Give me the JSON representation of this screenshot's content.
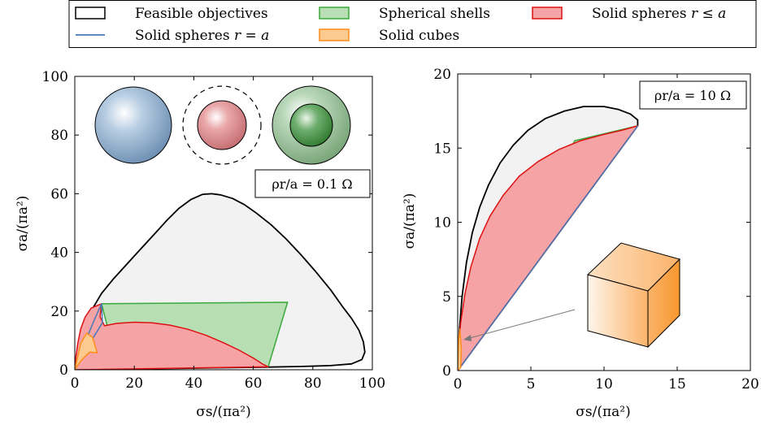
{
  "chart_data": [
    {
      "type": "area",
      "annotation": "ρr/a = 0.1 Ω",
      "xlabel": "σs/(πa²)",
      "ylabel": "σa/(πa²)",
      "xlim": [
        0,
        100
      ],
      "ylim": [
        0,
        100
      ],
      "xticks": [
        "0",
        "20",
        "40",
        "60",
        "80",
        "100"
      ],
      "yticks": [
        "0",
        "20",
        "40",
        "60",
        "80",
        "100"
      ],
      "series": [
        {
          "name": "Feasible objectives",
          "color": "#000000",
          "fill": "#f2f2f2",
          "points": [
            [
              0,
              0
            ],
            [
              0.6,
              3
            ],
            [
              1.5,
              8
            ],
            [
              3,
              14
            ],
            [
              5.5,
              20
            ],
            [
              9,
              26
            ],
            [
              13,
              31
            ],
            [
              17.5,
              36
            ],
            [
              22,
              41
            ],
            [
              27,
              46.5
            ],
            [
              31,
              51
            ],
            [
              35,
              55
            ],
            [
              39,
              58
            ],
            [
              43,
              59.8
            ],
            [
              46,
              60
            ],
            [
              49,
              59.6
            ],
            [
              53,
              58.4
            ],
            [
              57,
              56.3
            ],
            [
              61,
              53.4
            ],
            [
              66,
              49.4
            ],
            [
              71,
              44.6
            ],
            [
              76,
              39.2
            ],
            [
              81,
              33.4
            ],
            [
              86,
              27.2
            ],
            [
              90,
              21.5
            ],
            [
              93,
              17.5
            ],
            [
              95.5,
              13.5
            ],
            [
              97,
              9.5
            ],
            [
              97.5,
              6
            ],
            [
              96.5,
              3.5
            ],
            [
              93,
              2
            ],
            [
              86,
              1.4
            ],
            [
              76,
              1.1
            ],
            [
              64,
              0.9
            ],
            [
              50,
              0.7
            ],
            [
              36,
              0.5
            ],
            [
              22,
              0.3
            ],
            [
              10,
              0.15
            ],
            [
              3,
              0.05
            ],
            [
              0,
              0
            ]
          ]
        },
        {
          "name": "Spherical shells",
          "color": "#3aa83a",
          "fill": "#b7dfb3",
          "points": [
            [
              9,
              22.5
            ],
            [
              71.5,
              23
            ],
            [
              65,
              1
            ],
            [
              23,
              14.5
            ],
            [
              11,
              14.5
            ],
            [
              9,
              22.5
            ]
          ]
        },
        {
          "name": "Solid spheres r ≤ a",
          "color": "#dd1111",
          "fill": "#f5a3a5",
          "points": [
            [
              0,
              0
            ],
            [
              0.3,
              4
            ],
            [
              1,
              9
            ],
            [
              2,
              14
            ],
            [
              3.5,
              18
            ],
            [
              5.5,
              21
            ],
            [
              9,
              22.5
            ],
            [
              8.5,
              18
            ],
            [
              10,
              15
            ],
            [
              14,
              15.8
            ],
            [
              20,
              16.2
            ],
            [
              26,
              16
            ],
            [
              32,
              15.2
            ],
            [
              38,
              13.8
            ],
            [
              44,
              11.8
            ],
            [
              50,
              9.2
            ],
            [
              55,
              6.8
            ],
            [
              60,
              4
            ],
            [
              63,
              2
            ],
            [
              65,
              1
            ],
            [
              32,
              0.5
            ],
            [
              8,
              0.1
            ],
            [
              0,
              0
            ]
          ]
        },
        {
          "name": "Solid spheres r = a",
          "color": "#4878b8",
          "points": [
            [
              0,
              0
            ],
            [
              2,
              6
            ],
            [
              4.5,
              12
            ],
            [
              7,
              18
            ],
            [
              9,
              22.5
            ],
            [
              9.3,
              16
            ],
            [
              2,
              4
            ],
            [
              0,
              0
            ]
          ]
        },
        {
          "name": "Solid cubes",
          "color": "#ff8c1a",
          "fill": "#fcc98f",
          "points": [
            [
              0,
              0
            ],
            [
              2,
              9
            ],
            [
              4,
              12.5
            ],
            [
              6,
              11
            ],
            [
              7.5,
              5.8
            ],
            [
              5,
              6
            ],
            [
              2,
              3
            ],
            [
              0,
              0
            ]
          ]
        }
      ]
    },
    {
      "type": "area",
      "annotation": "ρr/a = 10 Ω",
      "xlabel": "σs/(πa²)",
      "ylabel": "σa/(πa²)",
      "xlim": [
        0,
        20
      ],
      "ylim": [
        0,
        20
      ],
      "xticks": [
        "0",
        "5",
        "10",
        "15",
        "20"
      ],
      "yticks": [
        "0",
        "5",
        "10",
        "15",
        "20"
      ],
      "series": [
        {
          "name": "Feasible objectives",
          "color": "#000000",
          "fill": "#f2f2f2",
          "points": [
            [
              0,
              0
            ],
            [
              0.1,
              2.5
            ],
            [
              0.3,
              5
            ],
            [
              0.6,
              7.3
            ],
            [
              1,
              9.3
            ],
            [
              1.5,
              11
            ],
            [
              2.1,
              12.5
            ],
            [
              2.9,
              14
            ],
            [
              3.8,
              15.2
            ],
            [
              4.8,
              16.2
            ],
            [
              6,
              17
            ],
            [
              7.3,
              17.5
            ],
            [
              8.6,
              17.8
            ],
            [
              10,
              17.8
            ],
            [
              11,
              17.6
            ],
            [
              11.8,
              17.3
            ],
            [
              12.3,
              16.9
            ],
            [
              12.3,
              16.5
            ],
            [
              0,
              0
            ]
          ]
        },
        {
          "name": "Spherical shells",
          "color": "#3aa83a",
          "fill": "#b7dfb3",
          "points": [
            [
              0.3,
              1.8
            ],
            [
              8,
              15.5
            ],
            [
              12.3,
              16.5
            ],
            [
              0.3,
              1.8
            ]
          ]
        },
        {
          "name": "Solid spheres r ≤ a",
          "color": "#dd1111",
          "fill": "#f5a3a5",
          "points": [
            [
              0,
              0
            ],
            [
              0.05,
              1.5
            ],
            [
              0.2,
              3.2
            ],
            [
              0.5,
              5.2
            ],
            [
              0.9,
              7
            ],
            [
              1.5,
              8.9
            ],
            [
              2.2,
              10.4
            ],
            [
              3.1,
              11.8
            ],
            [
              4.2,
              13.1
            ],
            [
              5.5,
              14.1
            ],
            [
              6.9,
              14.9
            ],
            [
              8.4,
              15.5
            ],
            [
              9.9,
              15.9
            ],
            [
              11.2,
              16.2
            ],
            [
              12.3,
              16.5
            ],
            [
              0,
              0
            ]
          ]
        },
        {
          "name": "Solid spheres r = a",
          "color": "#4878b8",
          "points": [
            [
              0,
              0
            ],
            [
              12.3,
              16.5
            ]
          ]
        },
        {
          "name": "Solid cubes",
          "color": "#ff8c1a",
          "fill": "#fcc98f",
          "points": [
            [
              0,
              0
            ],
            [
              0.08,
              2.2
            ],
            [
              0.15,
              2.8
            ],
            [
              0.25,
              1.4
            ],
            [
              0.2,
              0.2
            ],
            [
              0,
              0
            ]
          ]
        }
      ]
    }
  ],
  "legend": {
    "placement": "top-center",
    "entries": [
      {
        "label": "Feasible objectives",
        "edge": "#000000",
        "fill": "#ffffff",
        "kind": "box"
      },
      {
        "label": "Spherical shells",
        "edge": "#3aa83a",
        "fill": "#b7dfb3",
        "kind": "box"
      },
      {
        "label": "Solid spheres ",
        "math": "r ≤ a",
        "edge": "#dd1111",
        "fill": "#f5a3a5",
        "kind": "box"
      },
      {
        "label": "Solid spheres ",
        "math": "r = a",
        "edge": "#4878b8",
        "fill": "none",
        "kind": "line"
      },
      {
        "label": "Solid cubes",
        "edge": "#ff8c1a",
        "fill": "#fcc98f",
        "kind": "box"
      }
    ]
  },
  "icons": {
    "left_panel": [
      "solid-sphere-icon",
      "sphere-in-dashed-circle-icon",
      "spherical-shell-icon"
    ],
    "right_panel": [
      "cube-icon"
    ]
  }
}
